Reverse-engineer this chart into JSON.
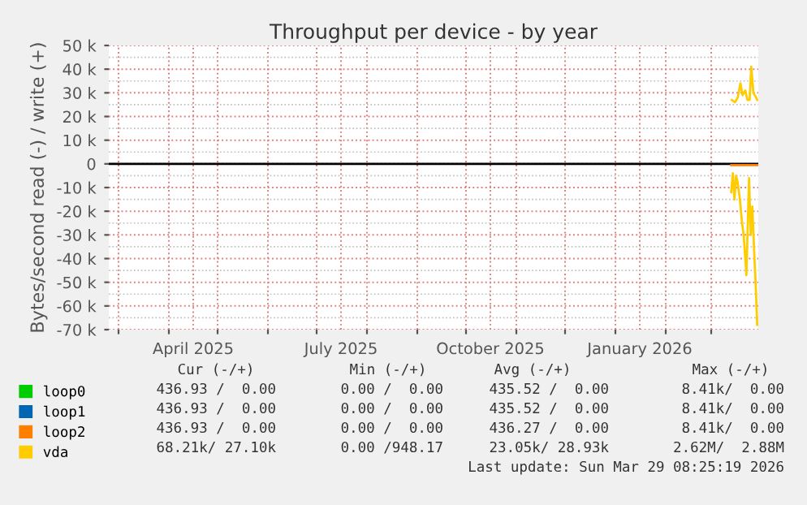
{
  "chart_data": {
    "type": "line",
    "title": "Throughput per device - by year",
    "ylabel": "Bytes/second read (-) / write (+)",
    "xlim": [
      "2025-02-23",
      "2026-03-30"
    ],
    "xticks": [
      {
        "value": "2025-03-01",
        "label": null
      },
      {
        "value": "2025-04-01",
        "label": null
      },
      {
        "value": "2025-04-16",
        "label": "April 2025"
      },
      {
        "value": "2025-05-01",
        "label": null
      },
      {
        "value": "2025-06-01",
        "label": null
      },
      {
        "value": "2025-07-01",
        "label": null
      },
      {
        "value": "2025-07-16",
        "label": "July 2025"
      },
      {
        "value": "2025-08-01",
        "label": null
      },
      {
        "value": "2025-09-01",
        "label": null
      },
      {
        "value": "2025-10-01",
        "label": null
      },
      {
        "value": "2025-10-16",
        "label": "October 2025"
      },
      {
        "value": "2025-11-01",
        "label": null
      },
      {
        "value": "2025-12-01",
        "label": null
      },
      {
        "value": "2026-01-01",
        "label": null
      },
      {
        "value": "2026-01-16",
        "label": "January 2026"
      },
      {
        "value": "2026-02-01",
        "label": null
      },
      {
        "value": "2026-03-01",
        "label": null
      }
    ],
    "ylim": [
      -70000,
      50000
    ],
    "yticks": [
      {
        "value": -70000,
        "label": "-70 k"
      },
      {
        "value": -60000,
        "label": "-60 k"
      },
      {
        "value": -50000,
        "label": "-50 k"
      },
      {
        "value": -40000,
        "label": "-40 k"
      },
      {
        "value": -30000,
        "label": "-30 k"
      },
      {
        "value": -20000,
        "label": "-20 k"
      },
      {
        "value": -10000,
        "label": "-10 k"
      },
      {
        "value": 0,
        "label": "0"
      },
      {
        "value": 10000,
        "label": "10 k"
      },
      {
        "value": 20000,
        "label": "20 k"
      },
      {
        "value": 30000,
        "label": "30 k"
      },
      {
        "value": 40000,
        "label": "40 k"
      },
      {
        "value": 50000,
        "label": "50 k"
      }
    ],
    "grid": true,
    "legend": "bottom left",
    "ref_lines": [
      {
        "axis": "y",
        "value": 0,
        "color": "#000000"
      }
    ],
    "series": [
      {
        "name": "loop0",
        "color": "#00cc00"
      },
      {
        "name": "loop1",
        "color": "#0066b3"
      },
      {
        "name": "loop2",
        "color": "#ff8000",
        "x": [
          "2026-03-13T08:00",
          "2026-03-29T08:00"
        ],
        "values": [
          -500,
          -500
        ]
      },
      {
        "name": "vda",
        "color": "#ffcc00",
        "x": [
          "2026-03-13T08:00",
          "2026-03-14T08:00",
          "2026-03-15T08:00",
          "2026-03-16T08:00",
          "2026-03-17T08:00",
          "2026-03-18T16:00",
          "2026-03-20T00:00",
          "2026-03-21T00:00",
          "2026-03-22T00:00",
          "2026-03-22T16:00",
          "2026-03-23T08:00",
          "2026-03-24T08:00",
          "2026-03-25T08:00",
          "2026-03-26T08:00",
          "2026-03-27T08:00",
          "2026-03-28T08:00",
          "2026-03-29T08:00"
        ],
        "values": [
          -12000,
          -4000,
          -15000,
          -5000,
          -8000,
          -15000,
          -25000,
          -30000,
          -40000,
          -47000,
          -30000,
          -6000,
          -30000,
          -18000,
          -35000,
          -50000,
          -68000
        ]
      },
      {
        "color": "#ffcc00",
        "x": [
          "2026-03-13T16:00",
          "2026-03-15T16:00",
          "2026-03-17T08:00",
          "2026-03-19T00:00",
          "2026-03-20T08:00",
          "2026-03-22T00:00",
          "2026-03-23T08:00",
          "2026-03-24T16:00",
          "2026-03-25T16:00",
          "2026-03-27T00:00",
          "2026-03-28T16:00",
          "2026-03-29T08:00"
        ],
        "values": [
          27000,
          26000,
          28000,
          34000,
          29000,
          31000,
          27000,
          27000,
          41000,
          30000,
          28000,
          27000
        ]
      }
    ],
    "annotations": [
      "Cur (-/+)",
      "Min (-/+)",
      "Avg (-/+)",
      "Max (-/+)",
      "436.93 /  0.00",
      "0.00 /  0.00",
      "435.52 /  0.00",
      "8.41k/  0.00",
      "436.93 /  0.00",
      "0.00 /  0.00",
      "435.52 /  0.00",
      "8.41k/  0.00",
      "436.93 /  0.00",
      "0.00 /  0.00",
      "436.27 /  0.00",
      "8.41k/  0.00",
      "68.21k/ 27.10k",
      "0.00 /948.17",
      "23.05k/ 28.93k",
      "2.62M/  2.88M",
      "Last update: Sun Mar 29 08:25:19 2026"
    ]
  }
}
